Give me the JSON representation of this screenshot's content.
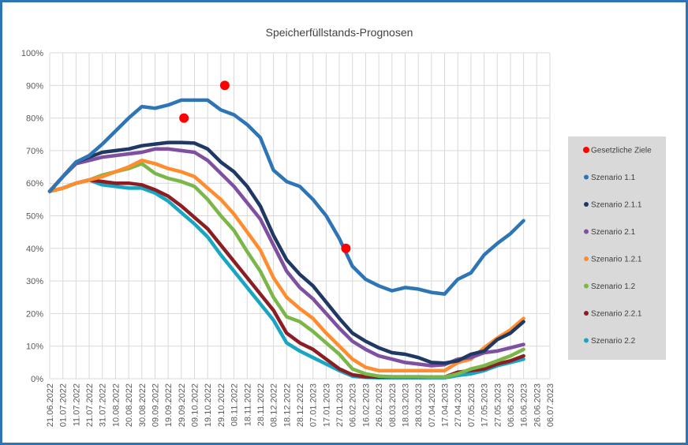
{
  "chart_data": {
    "type": "line",
    "title": "Speicherfüllstands-Prognosen",
    "xlabel": "",
    "ylabel": "",
    "ylim": [
      0,
      100
    ],
    "y_ticks": [
      "0%",
      "10%",
      "20%",
      "30%",
      "40%",
      "50%",
      "60%",
      "70%",
      "80%",
      "90%",
      "100%"
    ],
    "grid": true,
    "legend_position": "right",
    "x": [
      "21.06.2022",
      "01.07.2022",
      "11.07.2022",
      "21.07.2022",
      "31.07.2022",
      "10.08.2022",
      "20.08.2022",
      "30.08.2022",
      "09.09.2022",
      "19.09.2022",
      "29.09.2022",
      "09.10.2022",
      "19.10.2022",
      "29.10.2022",
      "08.11.2022",
      "18.11.2022",
      "28.11.2022",
      "08.12.2022",
      "18.12.2022",
      "28.12.2022",
      "07.01.2023",
      "17.01.2023",
      "27.01.2023",
      "06.02.2023",
      "16.02.2023",
      "26.02.2023",
      "08.03.2023",
      "18.03.2023",
      "28.03.2023",
      "07.04.2023",
      "17.04.2023",
      "27.04.2023",
      "07.05.2023",
      "17.05.2023",
      "27.05.2023",
      "06.06.2023",
      "16.06.2023",
      "26.06.2023",
      "06.07.2023"
    ],
    "targets": {
      "name": "Gesetzliche Ziele",
      "color": "#ff0000",
      "points": [
        {
          "date": "01.10.2022",
          "value": 80
        },
        {
          "date": "01.11.2022",
          "value": 90
        },
        {
          "date": "01.02.2023",
          "value": 40
        }
      ]
    },
    "series": [
      {
        "name": "Szenario 1.1",
        "color": "#2e75b6",
        "values": [
          57.5,
          62,
          66.5,
          68.5,
          72,
          76,
          80,
          83.5,
          83,
          84,
          85.5,
          85.5,
          85.5,
          82.5,
          81,
          78,
          74,
          64,
          60.5,
          59,
          55,
          50,
          43,
          34.5,
          30.5,
          28.5,
          27,
          28,
          27.5,
          26.5,
          26,
          30.5,
          32.5,
          38,
          41.5,
          44.5,
          48.5,
          null,
          null
        ]
      },
      {
        "name": "Szenario 2.1.1",
        "color": "#1f3864",
        "values": [
          57.5,
          62,
          66.5,
          68,
          69.5,
          70,
          70.5,
          71.5,
          72,
          72.5,
          72.5,
          72.3,
          70.5,
          66.5,
          63.5,
          59,
          53,
          44,
          36.5,
          32,
          28.5,
          23.5,
          18.5,
          14,
          11.5,
          9.5,
          8,
          7.5,
          6.5,
          5,
          4.8,
          5.5,
          7.5,
          8.5,
          12,
          14,
          17.5,
          null,
          null
        ]
      },
      {
        "name": "Szenario 2.1",
        "color": "#7f4fa0",
        "values": [
          57.5,
          62,
          66,
          67,
          68,
          68.5,
          69,
          69.5,
          70.5,
          70.5,
          70,
          69.5,
          67,
          63,
          59,
          54,
          49,
          41,
          33,
          28,
          24.5,
          20,
          15.5,
          11.5,
          9,
          7,
          6,
          5,
          4.5,
          4,
          4.3,
          6,
          6.5,
          8,
          8.5,
          9.5,
          10.5,
          null,
          null
        ]
      },
      {
        "name": "Szenario 1.2.1",
        "color": "#ff8c2e",
        "values": [
          57.5,
          58.5,
          60,
          61,
          62,
          63.5,
          65,
          67,
          66,
          64.5,
          63.5,
          62,
          58.5,
          55,
          50.5,
          45,
          39.5,
          31,
          25,
          21.5,
          18.5,
          14,
          10,
          6,
          3.5,
          2.5,
          2.5,
          2.5,
          2.5,
          2.5,
          2.5,
          5,
          6,
          9.5,
          12.5,
          15,
          18.5,
          null,
          null
        ]
      },
      {
        "name": "Szenario 1.2",
        "color": "#7ab648",
        "values": [
          57.5,
          58.5,
          60,
          61,
          62.5,
          63.5,
          64.5,
          66,
          63,
          61.5,
          60.5,
          59,
          55,
          50,
          45.5,
          39,
          33,
          25,
          19,
          17.5,
          14.5,
          11,
          7.5,
          3,
          1.5,
          0.8,
          0.6,
          0.6,
          0.6,
          0.5,
          0.5,
          1.5,
          3,
          4,
          5.5,
          7,
          9,
          null,
          null
        ]
      },
      {
        "name": "Szenario 2.2.1",
        "color": "#8b1e24",
        "values": [
          57.5,
          58.5,
          60,
          61,
          60.5,
          60,
          60,
          59.5,
          58,
          56,
          53,
          49.5,
          46,
          41,
          36,
          31,
          26,
          21,
          14,
          11,
          9,
          6,
          3,
          1.2,
          0.6,
          0.5,
          0.5,
          0.5,
          0.5,
          0.5,
          0.5,
          2,
          2.5,
          3,
          4.5,
          5.5,
          7,
          null,
          null
        ]
      },
      {
        "name": "Szenario 2.2",
        "color": "#17a6c4",
        "values": [
          57.5,
          58.5,
          60,
          61,
          59.5,
          59,
          58.5,
          58.5,
          57,
          54.5,
          51,
          47.5,
          43.5,
          38,
          33,
          28,
          23,
          18,
          11,
          8.5,
          6.5,
          4.5,
          2.5,
          0.8,
          0.4,
          0.3,
          0.3,
          0.3,
          0.3,
          0.3,
          0.3,
          1,
          1.5,
          2.5,
          4,
          5,
          6,
          null,
          null
        ]
      }
    ]
  }
}
